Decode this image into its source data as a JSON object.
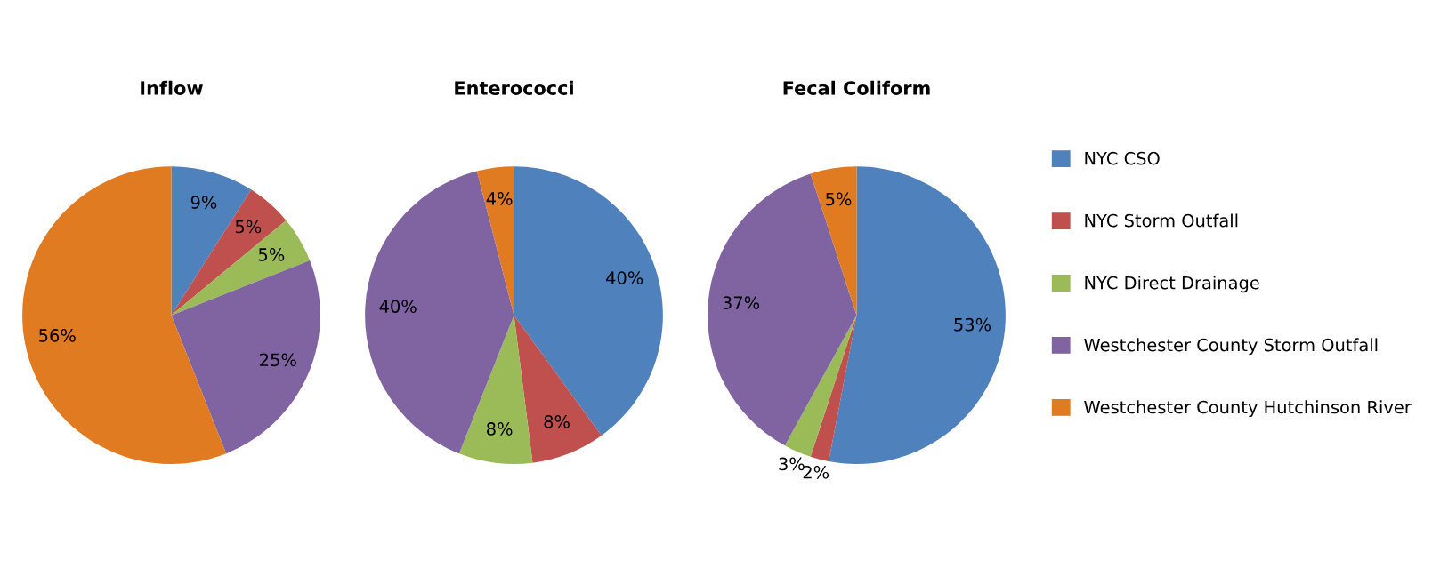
{
  "chart_data": [
    {
      "type": "pie",
      "title": "Inflow",
      "categories": [
        "NYC CSO",
        "NYC Storm Outfall",
        "NYC Direct Drainage",
        "Westchester County Storm Outfall",
        "Westchester County Hutchinson River"
      ],
      "values": [
        9,
        5,
        5,
        25,
        56
      ],
      "colors": [
        "#4f81bd",
        "#c0504d",
        "#9bbb59",
        "#8064a2",
        "#e07b22"
      ],
      "value_labels": [
        "9%",
        "5%",
        "5%",
        "25%",
        "56%"
      ],
      "legend": "right"
    },
    {
      "type": "pie",
      "title": "Enterococci",
      "categories": [
        null,
        null,
        null,
        null,
        null
      ],
      "values": [
        40,
        8,
        8,
        40,
        4
      ],
      "colors": [
        "#4f81bd",
        "#c0504d",
        "#9bbb59",
        "#8064a2",
        "#e07b22"
      ],
      "value_labels": [
        "40%",
        "8%",
        "8%",
        "40%",
        "4%"
      ],
      "legend": false
    },
    {
      "type": "pie",
      "title": "Fecal Coliform",
      "categories": [
        null,
        null,
        null,
        null,
        null
      ],
      "values": [
        53,
        2,
        3,
        37,
        5
      ],
      "colors": [
        "#4f81bd",
        "#c0504d",
        "#9bbb59",
        "#8064a2",
        "#e07b22"
      ],
      "value_labels": [
        "53%",
        "2%",
        "3%",
        "37%",
        "5%"
      ],
      "legend": false
    }
  ]
}
